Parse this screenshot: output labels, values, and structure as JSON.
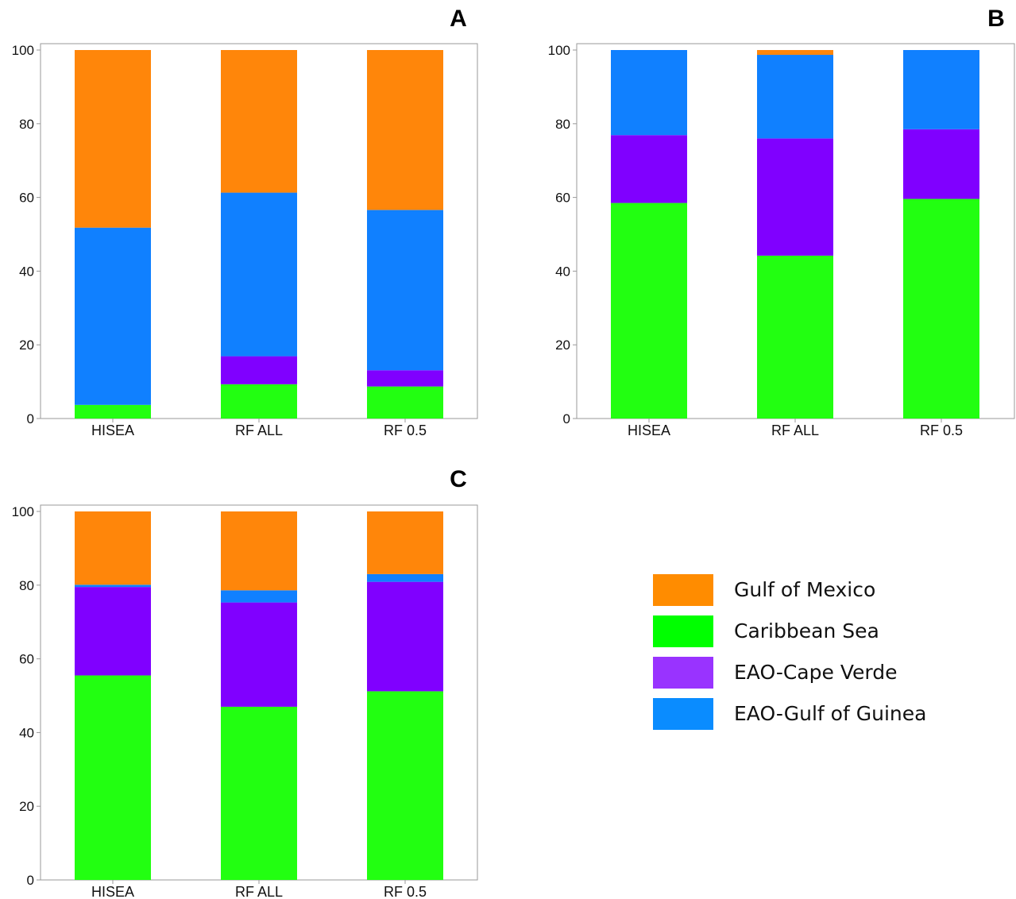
{
  "legend": {
    "entries": [
      {
        "key": "gulf_of_mexico",
        "label": "Gulf of Mexico",
        "color": "#FF8C00"
      },
      {
        "key": "caribbean_sea",
        "label": "Caribbean Sea",
        "color": "#00FF00"
      },
      {
        "key": "eao_cape_verde",
        "label": "EAO-Cape Verde",
        "color": "#9933FF"
      },
      {
        "key": "eao_gulf_of_guinea",
        "label": "EAO-Gulf of Guinea",
        "color": "#0A8CFF"
      }
    ]
  },
  "chart_data": [
    {
      "panel": "A",
      "type": "bar",
      "stacked": true,
      "categories": [
        "HISEA",
        "RF ALL",
        "RF 0.5"
      ],
      "ylim": [
        0,
        100
      ],
      "yticks": [
        "0",
        "20",
        "40",
        "60",
        "80",
        "100"
      ],
      "series": [
        {
          "name": "Caribbean Sea",
          "color": "#22FF11",
          "values": [
            3.7,
            9.3,
            8.7
          ]
        },
        {
          "name": "EAO-Cape Verde",
          "color": "#8000FF",
          "values": [
            0,
            7.6,
            4.4
          ]
        },
        {
          "name": "EAO-Gulf of Guinea",
          "color": "#1080FF",
          "values": [
            48.1,
            44.4,
            43.5
          ]
        },
        {
          "name": "Gulf of Mexico",
          "color": "#FF860A",
          "values": [
            48.2,
            38.7,
            43.4
          ]
        }
      ]
    },
    {
      "panel": "B",
      "type": "bar",
      "stacked": true,
      "categories": [
        "HISEA",
        "RF ALL",
        "RF 0.5"
      ],
      "ylim": [
        0,
        100
      ],
      "yticks": [
        "0",
        "20",
        "40",
        "60",
        "80",
        "100"
      ],
      "series": [
        {
          "name": "Caribbean Sea",
          "color": "#22FF11",
          "values": [
            58.5,
            44.2,
            59.6
          ]
        },
        {
          "name": "EAO-Cape Verde",
          "color": "#8000FF",
          "values": [
            18.4,
            31.8,
            18.9
          ]
        },
        {
          "name": "EAO-Gulf of Guinea",
          "color": "#1080FF",
          "values": [
            23.1,
            22.7,
            21.5
          ]
        },
        {
          "name": "Gulf of Mexico",
          "color": "#FF860A",
          "values": [
            0,
            1.3,
            0
          ]
        }
      ]
    },
    {
      "panel": "C",
      "type": "bar",
      "stacked": true,
      "categories": [
        "HISEA",
        "RF ALL",
        "RF 0.5"
      ],
      "ylim": [
        0,
        100
      ],
      "yticks": [
        "0",
        "20",
        "40",
        "60",
        "80",
        "100"
      ],
      "series": [
        {
          "name": "Caribbean Sea",
          "color": "#22FF11",
          "values": [
            55.5,
            47.0,
            51.2
          ]
        },
        {
          "name": "EAO-Cape Verde",
          "color": "#8000FF",
          "values": [
            24.0,
            28.3,
            29.7
          ]
        },
        {
          "name": "EAO-Gulf of Guinea",
          "color": "#1080FF",
          "values": [
            0.6,
            3.3,
            2.1
          ]
        },
        {
          "name": "Gulf of Mexico",
          "color": "#FF860A",
          "values": [
            19.9,
            21.4,
            17.0
          ]
        }
      ]
    }
  ]
}
